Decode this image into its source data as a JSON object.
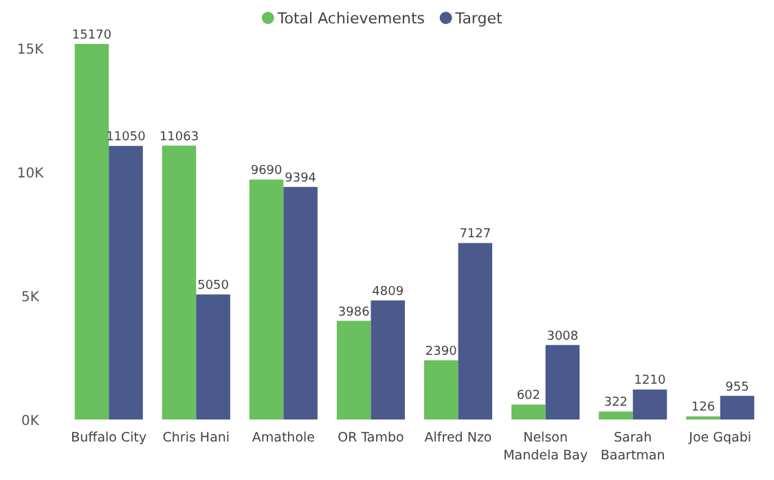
{
  "chart_data": {
    "type": "bar",
    "categories": [
      "Buffalo City",
      "Chris Hani",
      "Amathole",
      "OR Tambo",
      "Alfred Nzo",
      "Nelson Mandela Bay",
      "Sarah Baartman",
      "Joe Gqabi"
    ],
    "series": [
      {
        "name": "Total Achievements",
        "color": "#6abf5e",
        "values": [
          15170,
          11063,
          9690,
          3986,
          2390,
          602,
          322,
          126
        ]
      },
      {
        "name": "Target",
        "color": "#4a5a8c",
        "values": [
          11050,
          5050,
          9394,
          4809,
          7127,
          3008,
          1210,
          955
        ]
      }
    ],
    "ylim": [
      0,
      15500
    ],
    "yticks": [
      {
        "value": 0,
        "label": "0K"
      },
      {
        "value": 5000,
        "label": "5K"
      },
      {
        "value": 10000,
        "label": "10K"
      },
      {
        "value": 15000,
        "label": "15K"
      }
    ],
    "data_labels": true,
    "legend": "top",
    "grid": false
  }
}
